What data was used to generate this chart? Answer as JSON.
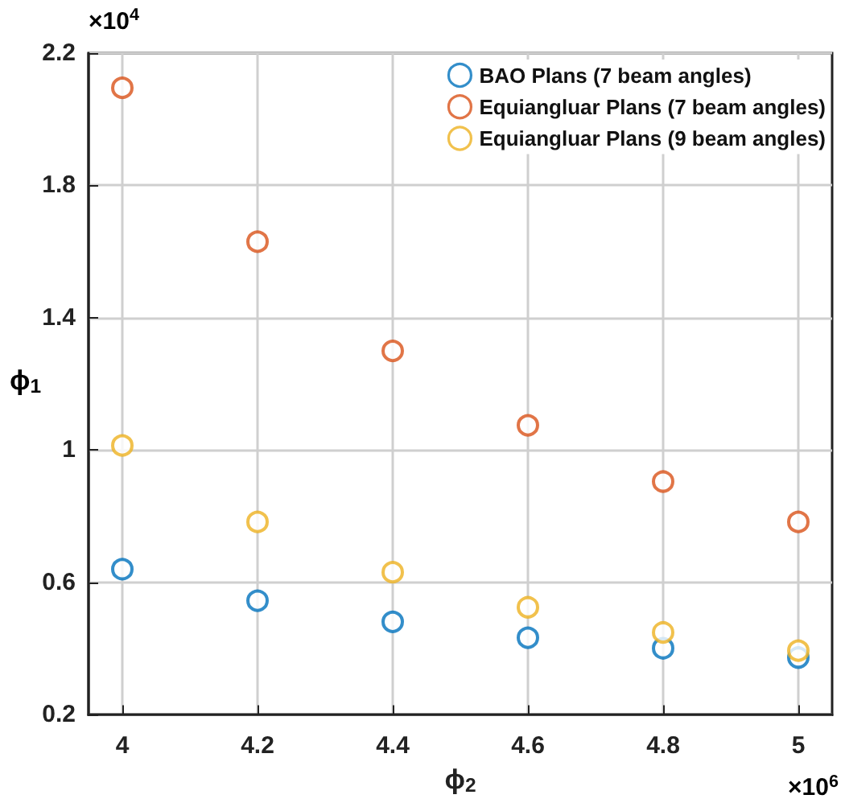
{
  "chart_data": {
    "type": "scatter",
    "xlabel": "ϕ$_{2}$",
    "ylabel": "ϕ$_{1}$",
    "x": [
      4,
      4.2,
      4.4,
      4.6,
      4.8,
      5
    ],
    "series": [
      {
        "name": "BAO Plans (7 beam angles)",
        "color": "#0072bd",
        "values": [
          0.64,
          0.545,
          0.481,
          0.433,
          0.401,
          0.373
        ]
      },
      {
        "name": "Equiangluar Plans (7 beam angles)",
        "color": "#d95319",
        "values": [
          2.095,
          1.63,
          1.3,
          1.075,
          0.905,
          0.783
        ]
      },
      {
        "name": "Equiangluar Plans (9 beam angles)",
        "color": "#edb120",
        "values": [
          1.014,
          0.783,
          0.631,
          0.525,
          0.449,
          0.394
        ]
      }
    ],
    "xlim": [
      3.95,
      5.05
    ],
    "xticks": [
      4,
      4.2,
      4.4,
      4.6,
      4.8,
      5
    ],
    "ylim": [
      0.2,
      2.2
    ],
    "yticks": [
      0.2,
      0.6,
      1,
      1.4,
      1.8,
      2.2
    ],
    "annotations": [
      "×10$^{4}$",
      "×10$^{6}$"
    ],
    "grid": true,
    "legend": "top right",
    "marker": "circle"
  }
}
